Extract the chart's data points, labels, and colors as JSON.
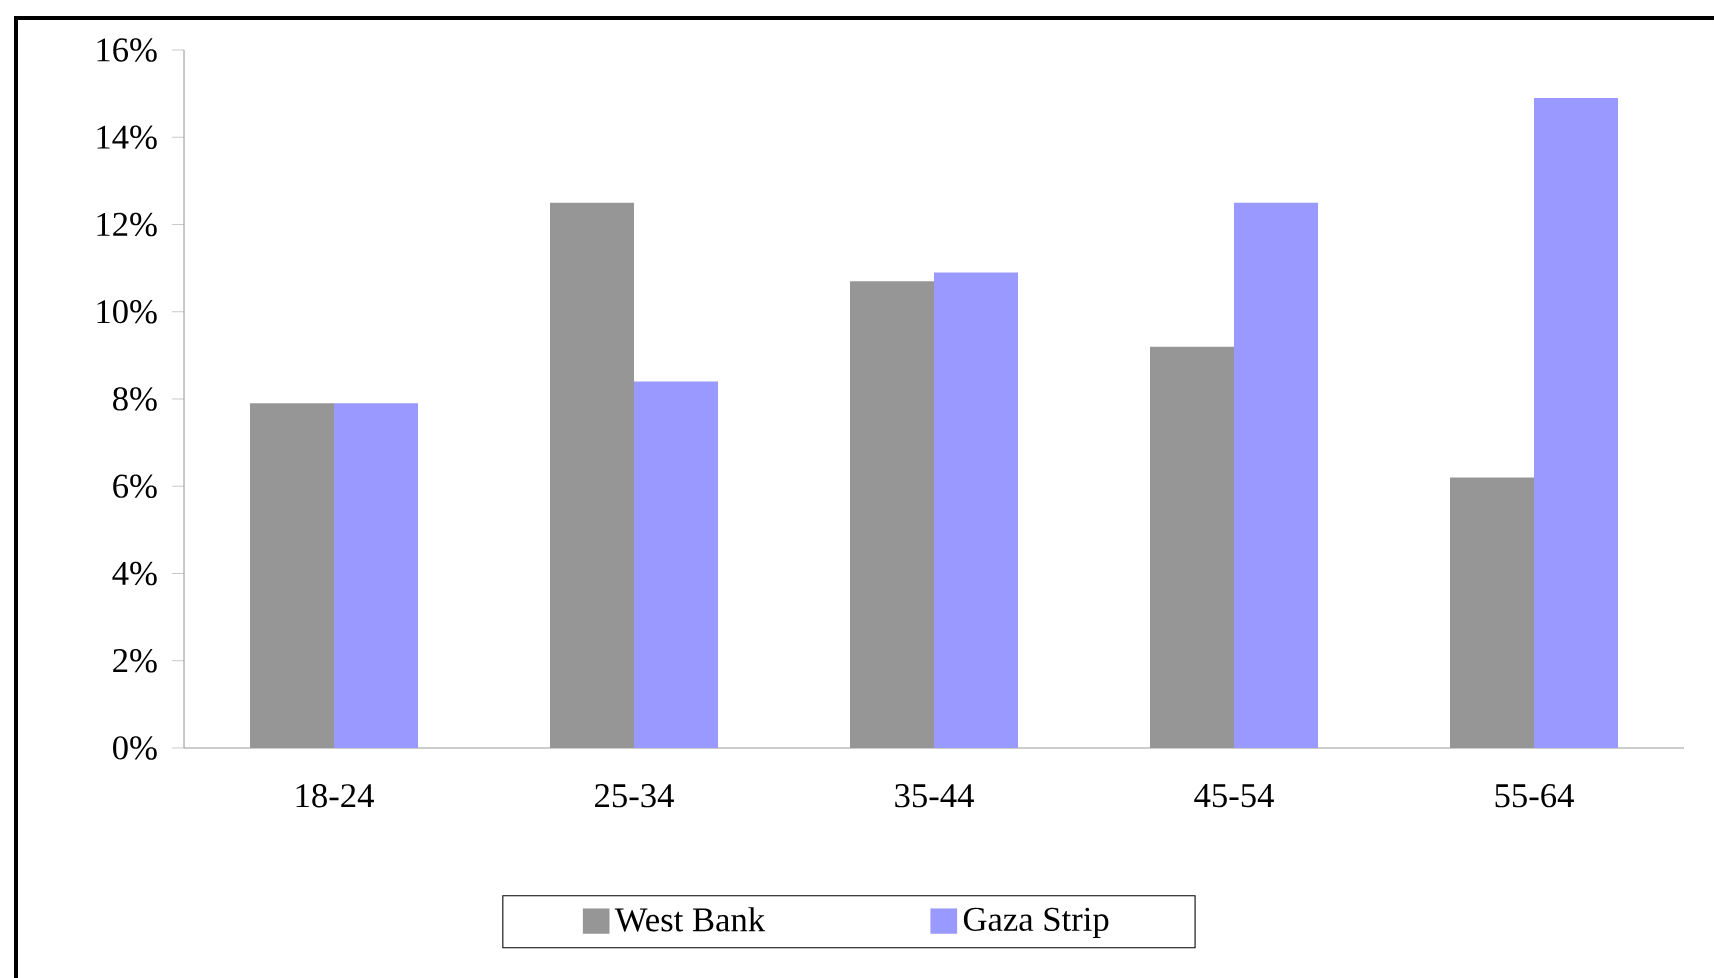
{
  "chart_data": {
    "type": "bar",
    "categories": [
      "18-24",
      "25-34",
      "35-44",
      "45-54",
      "55-64"
    ],
    "series": [
      {
        "name": "West Bank",
        "color": "#969696",
        "values": [
          7.9,
          12.5,
          10.7,
          9.2,
          6.2
        ]
      },
      {
        "name": "Gaza Strip",
        "color": "#9999ff",
        "values": [
          7.9,
          8.4,
          10.9,
          12.5,
          14.9
        ]
      }
    ],
    "ylim": [
      0,
      16
    ],
    "yticks": [
      {
        "value": 0,
        "label": "0%"
      },
      {
        "value": 2,
        "label": "2%"
      },
      {
        "value": 4,
        "label": "4%"
      },
      {
        "value": 6,
        "label": "6%"
      },
      {
        "value": 8,
        "label": "8%"
      },
      {
        "value": 10,
        "label": "10%"
      },
      {
        "value": 12,
        "label": "12%"
      },
      {
        "value": 14,
        "label": "14%"
      },
      {
        "value": 16,
        "label": "16%"
      }
    ],
    "legend": "bottom"
  }
}
